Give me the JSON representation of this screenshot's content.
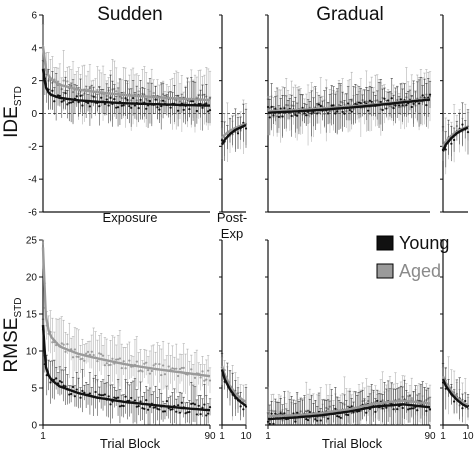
{
  "chart_data": [
    {
      "id": "ide-sudden",
      "type": "line",
      "title": "Sudden",
      "ylabel_main": "IDE",
      "ylabel_sub": "STD",
      "xlabel": "Exposure",
      "ylim": [
        -6,
        6
      ],
      "yticks": [
        "6",
        "4",
        "2",
        "0",
        "-2",
        "-4",
        "-6"
      ],
      "reference_line_y": 0,
      "series": [
        {
          "name": "Young",
          "color": "#111111",
          "x": [
            1,
            2,
            3,
            5,
            10,
            20,
            30,
            45,
            60,
            75,
            90
          ],
          "values": [
            2.7,
            1.8,
            1.4,
            1.15,
            0.95,
            0.8,
            0.72,
            0.62,
            0.57,
            0.52,
            0.48
          ]
        },
        {
          "name": "Aged",
          "color": "#9a9a9a",
          "x": [
            1,
            2,
            3,
            5,
            10,
            20,
            30,
            45,
            60,
            75,
            90
          ],
          "values": [
            4.1,
            3.0,
            2.5,
            2.1,
            1.75,
            1.45,
            1.3,
            1.12,
            1.0,
            0.9,
            0.82
          ]
        }
      ]
    },
    {
      "id": "ide-sudden-post",
      "type": "line",
      "xlabel": "Post-Exp",
      "ylim": [
        -6,
        6
      ],
      "reference_line_y": 0,
      "series": [
        {
          "name": "Young",
          "color": "#111111",
          "x": [
            1,
            2,
            4,
            6,
            8,
            10
          ],
          "values": [
            -1.9,
            -1.6,
            -1.25,
            -1.0,
            -0.85,
            -0.7
          ]
        },
        {
          "name": "Aged",
          "color": "#9a9a9a",
          "x": [
            1,
            2,
            4,
            6,
            8,
            10
          ],
          "values": [
            -1.5,
            -1.3,
            -1.05,
            -0.88,
            -0.75,
            -0.62
          ]
        }
      ]
    },
    {
      "id": "ide-gradual",
      "type": "line",
      "title": "Gradual",
      "ylim": [
        -6,
        6
      ],
      "reference_line_y": 0,
      "series": [
        {
          "name": "Young",
          "color": "#111111",
          "x": [
            1,
            15,
            30,
            45,
            60,
            75,
            90
          ],
          "values": [
            0.05,
            0.12,
            0.22,
            0.35,
            0.5,
            0.68,
            0.85
          ]
        },
        {
          "name": "Aged",
          "color": "#9a9a9a",
          "x": [
            1,
            15,
            30,
            45,
            60,
            75,
            90
          ],
          "values": [
            0.15,
            0.2,
            0.3,
            0.42,
            0.55,
            0.72,
            0.88
          ]
        }
      ]
    },
    {
      "id": "ide-gradual-post",
      "type": "line",
      "ylim": [
        -6,
        6
      ],
      "reference_line_y": 0,
      "series": [
        {
          "name": "Young",
          "color": "#111111",
          "x": [
            1,
            2,
            4,
            6,
            8,
            10
          ],
          "values": [
            -2.3,
            -1.9,
            -1.5,
            -1.2,
            -1.0,
            -0.85
          ]
        },
        {
          "name": "Aged",
          "color": "#9a9a9a",
          "x": [
            1,
            2,
            4,
            6,
            8,
            10
          ],
          "values": [
            -2.0,
            -1.7,
            -1.35,
            -1.1,
            -0.92,
            -0.8
          ]
        }
      ]
    },
    {
      "id": "rmse-sudden",
      "type": "line",
      "ylabel_main": "RMSE",
      "ylabel_sub": "STD",
      "xlabel": "Trial Block",
      "ylim": [
        0,
        25
      ],
      "yticks": [
        "25",
        "20",
        "15",
        "10",
        "5",
        "0"
      ],
      "xticks": [
        "1",
        "90"
      ],
      "series": [
        {
          "name": "Young",
          "color": "#111111",
          "x": [
            1,
            2,
            3,
            5,
            10,
            20,
            30,
            45,
            60,
            75,
            90
          ],
          "values": [
            13.5,
            8.5,
            7.2,
            6.2,
            5.2,
            4.3,
            3.7,
            3.1,
            2.7,
            2.3,
            2.0
          ]
        },
        {
          "name": "Aged",
          "color": "#9a9a9a",
          "x": [
            1,
            2,
            3,
            5,
            10,
            20,
            30,
            45,
            60,
            75,
            90
          ],
          "values": [
            24.0,
            16.0,
            13.5,
            12.0,
            10.6,
            9.6,
            9.0,
            8.2,
            7.6,
            7.1,
            6.6
          ]
        }
      ]
    },
    {
      "id": "rmse-sudden-post",
      "type": "line",
      "ylim": [
        0,
        25
      ],
      "xticks": [
        "1",
        "10"
      ],
      "series": [
        {
          "name": "Young",
          "color": "#111111",
          "x": [
            1,
            2,
            4,
            6,
            8,
            10
          ],
          "values": [
            7.5,
            6.2,
            4.8,
            3.8,
            3.1,
            2.6
          ]
        },
        {
          "name": "Aged",
          "color": "#9a9a9a",
          "x": [
            1,
            2,
            4,
            6,
            8,
            10
          ],
          "values": [
            8.0,
            6.8,
            5.3,
            4.3,
            3.6,
            3.1
          ]
        }
      ]
    },
    {
      "id": "rmse-gradual",
      "type": "line",
      "xlabel": "Trial Block",
      "ylim": [
        0,
        25
      ],
      "xticks": [
        "1",
        "90"
      ],
      "series": [
        {
          "name": "Young",
          "color": "#111111",
          "x": [
            1,
            15,
            30,
            45,
            60,
            75,
            90
          ],
          "values": [
            0.8,
            1.0,
            1.3,
            1.8,
            2.5,
            2.8,
            2.4
          ]
        },
        {
          "name": "Aged",
          "color": "#9a9a9a",
          "x": [
            1,
            15,
            30,
            45,
            60,
            75,
            90
          ],
          "values": [
            1.2,
            1.3,
            1.6,
            2.1,
            2.9,
            3.3,
            2.9
          ]
        }
      ]
    },
    {
      "id": "rmse-gradual-post",
      "type": "line",
      "ylim": [
        0,
        25
      ],
      "xticks": [
        "1",
        "10"
      ],
      "series": [
        {
          "name": "Young",
          "color": "#111111",
          "x": [
            1,
            2,
            4,
            6,
            8,
            10
          ],
          "values": [
            6.2,
            5.3,
            4.2,
            3.4,
            2.8,
            2.4
          ]
        },
        {
          "name": "Aged",
          "color": "#9a9a9a",
          "x": [
            1,
            2,
            4,
            6,
            8,
            10
          ],
          "values": [
            6.6,
            5.7,
            4.6,
            3.7,
            3.1,
            2.7
          ]
        }
      ]
    }
  ],
  "legend": [
    {
      "label": "Young",
      "color": "#111111"
    },
    {
      "label": "Aged",
      "color": "#9a9a9a"
    }
  ],
  "post_label": {
    "line1": "Post-",
    "line2": "Exp"
  }
}
